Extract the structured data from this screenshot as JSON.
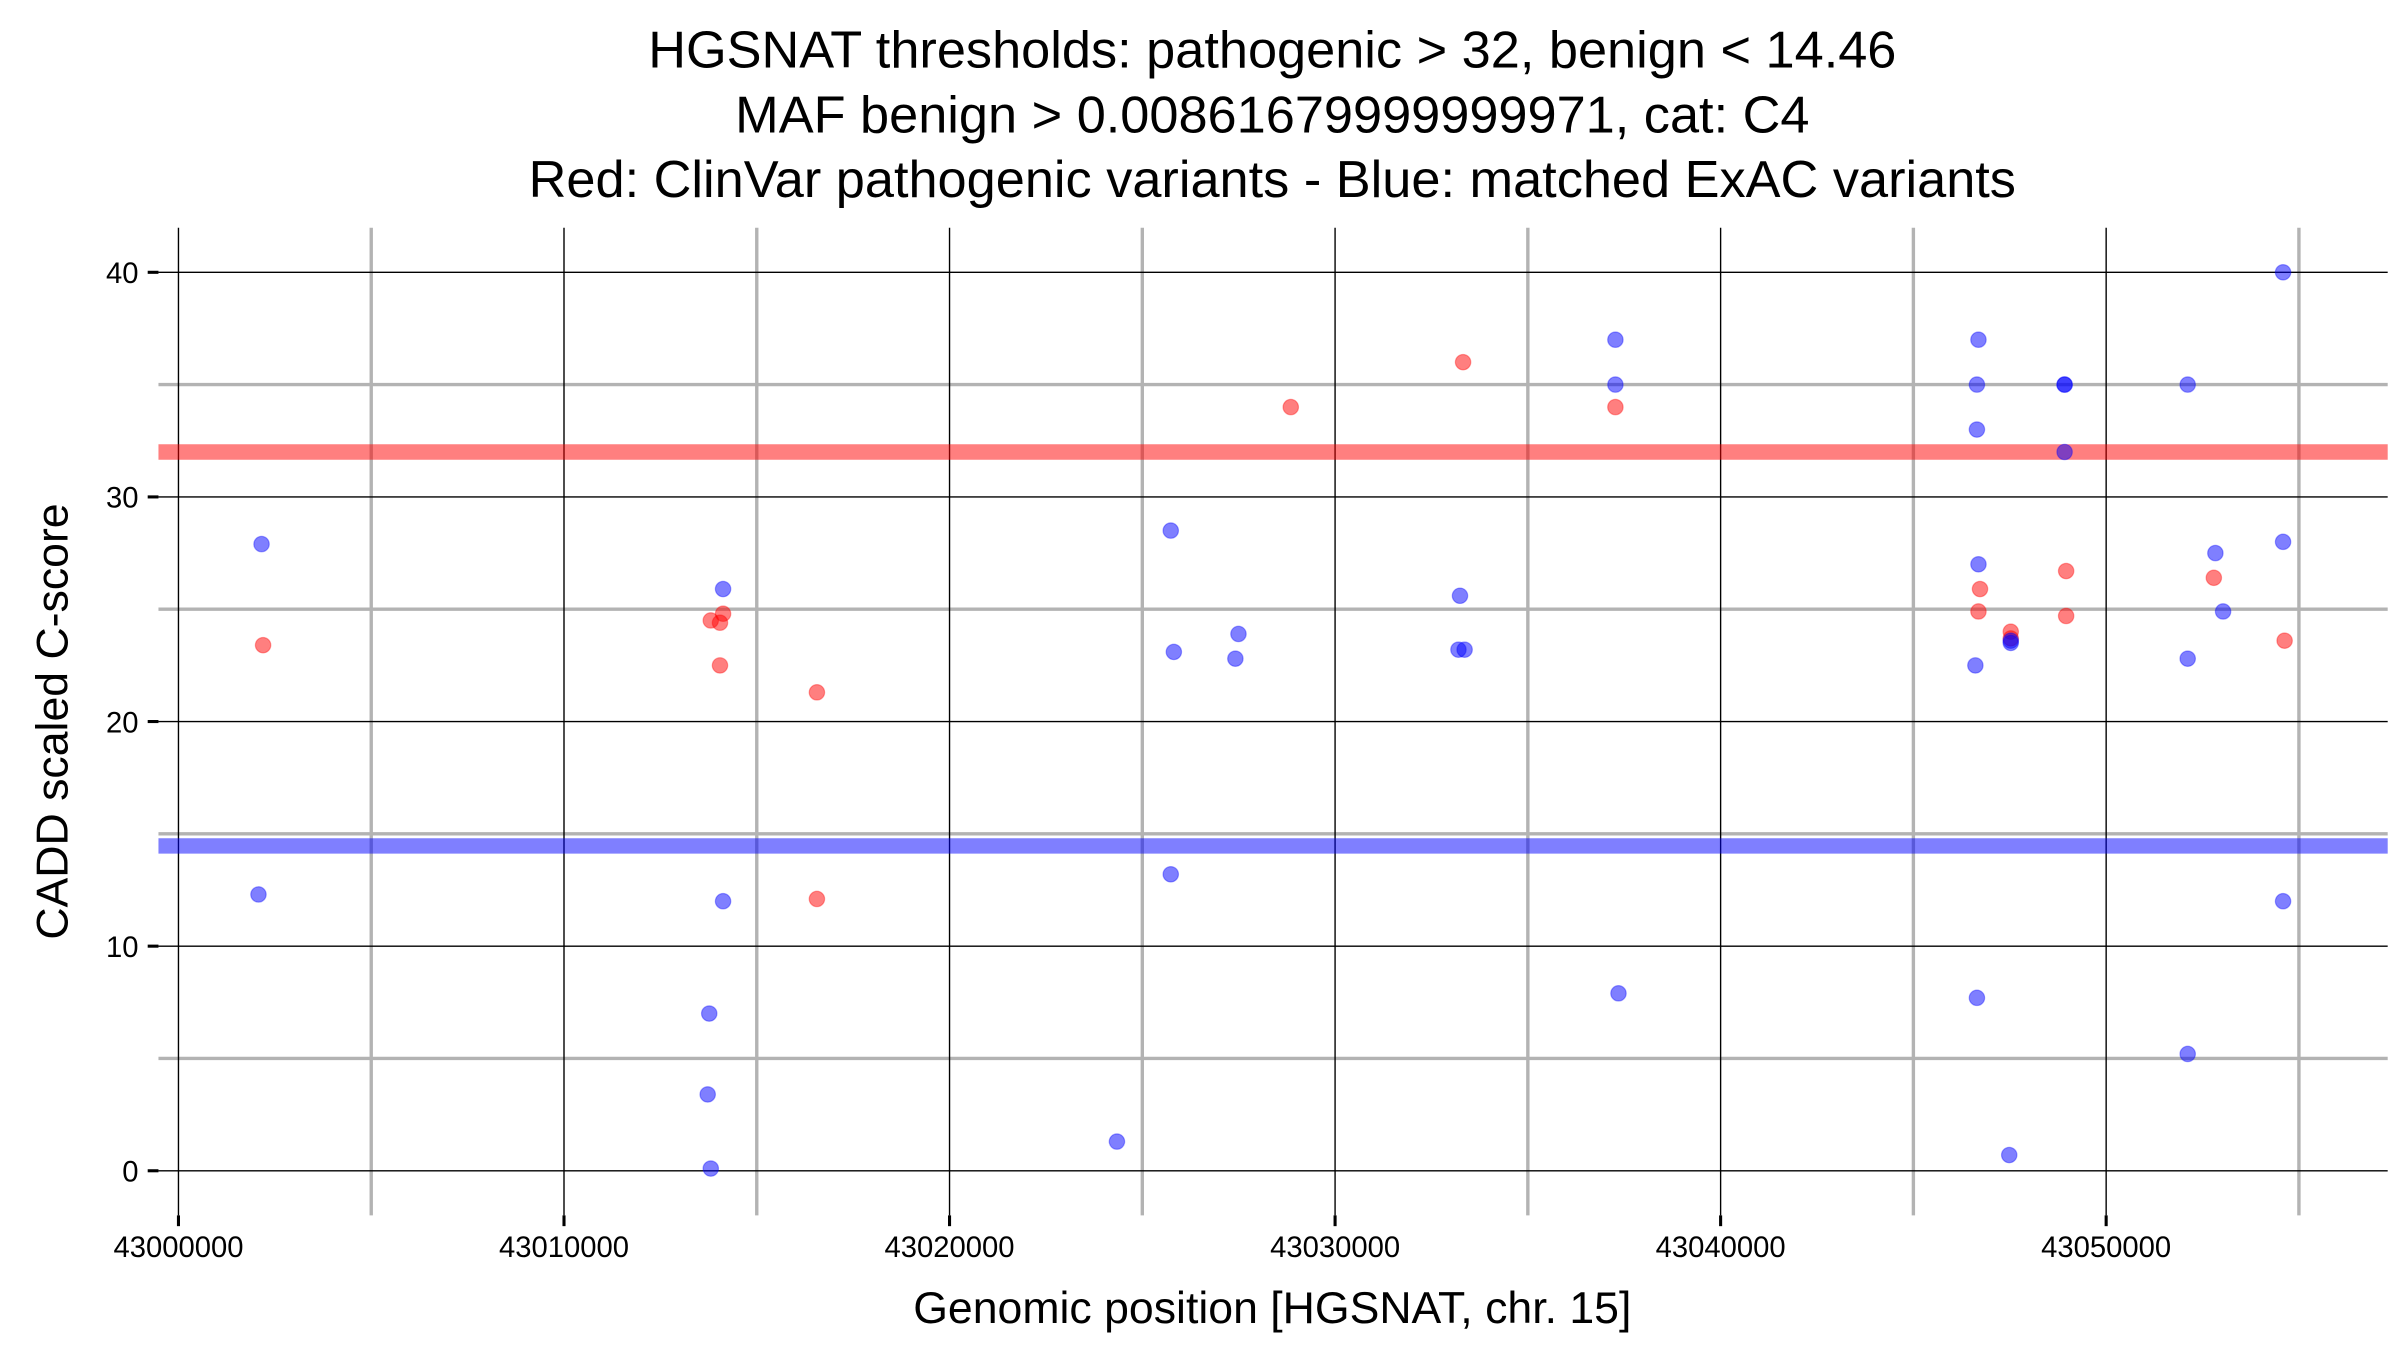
{
  "chart_data": {
    "type": "scatter",
    "title_lines": [
      "HGSNAT thresholds: pathogenic > 32, benign < 14.46",
      "MAF benign > 0.00861679999999971, cat: C4",
      "Red: ClinVar pathogenic variants - Blue: matched ExAC variants"
    ],
    "xlabel": "Genomic position [HGSNAT, chr. 15]",
    "ylabel": "CADD scaled C-score",
    "xlim": [
      42999500,
      43057200
    ],
    "ylim": [
      -1.9,
      41.9
    ],
    "xticks": [
      43000000,
      43010000,
      43020000,
      43030000,
      43040000,
      43050000
    ],
    "xtick_labels": [
      "43000000",
      "43010000",
      "43020000",
      "43030000",
      "43040000",
      "43050000"
    ],
    "xminor": [
      43005000,
      43015000,
      43025000,
      43035000,
      43045000,
      43055000
    ],
    "yticks": [
      0,
      10,
      20,
      30,
      40
    ],
    "ytick_labels": [
      "0",
      "10",
      "20",
      "30",
      "40"
    ],
    "yminor": [
      5,
      15,
      25,
      35
    ],
    "grid": true,
    "thresholds": [
      {
        "name": "pathogenic",
        "value": 32,
        "color": "#ff0000"
      },
      {
        "name": "benign",
        "value": 14.46,
        "color": "#0000ff"
      }
    ],
    "series": [
      {
        "name": "ClinVar pathogenic variants",
        "color": "#ff0000",
        "points": [
          [
            43002195,
            23.4
          ],
          [
            43013807,
            24.5
          ],
          [
            43014126,
            24.8
          ],
          [
            43014046,
            24.4
          ],
          [
            43014046,
            22.5
          ],
          [
            43016560,
            21.3
          ],
          [
            43016560,
            12.1
          ],
          [
            43028851,
            34.0
          ],
          [
            43033320,
            36.0
          ],
          [
            43037271,
            34.0
          ],
          [
            43046728,
            25.9
          ],
          [
            43046688,
            24.9
          ],
          [
            43047526,
            24.0
          ],
          [
            43047526,
            23.7
          ],
          [
            43048962,
            26.7
          ],
          [
            43048962,
            24.7
          ],
          [
            43052793,
            26.4
          ],
          [
            43054629,
            23.6
          ]
        ]
      },
      {
        "name": "matched ExAC variants",
        "color": "#0000ff",
        "points": [
          [
            43002155,
            27.9
          ],
          [
            43002075,
            12.3
          ],
          [
            43014126,
            25.9
          ],
          [
            43014126,
            12.0
          ],
          [
            43013767,
            7.0
          ],
          [
            43013727,
            3.4
          ],
          [
            43013807,
            0.1
          ],
          [
            43024342,
            1.3
          ],
          [
            43025738,
            28.5
          ],
          [
            43025818,
            23.1
          ],
          [
            43025738,
            13.2
          ],
          [
            43027494,
            23.9
          ],
          [
            43027414,
            22.8
          ],
          [
            43033240,
            25.6
          ],
          [
            43033200,
            23.2
          ],
          [
            43033360,
            23.2
          ],
          [
            43037271,
            37.0
          ],
          [
            43037271,
            35.0
          ],
          [
            43037351,
            7.9
          ],
          [
            43046688,
            37.0
          ],
          [
            43046648,
            35.0
          ],
          [
            43046648,
            33.0
          ],
          [
            43046688,
            27.0
          ],
          [
            43046608,
            22.5
          ],
          [
            43046648,
            7.7
          ],
          [
            43047526,
            23.5
          ],
          [
            43047526,
            23.6
          ],
          [
            43047486,
            0.7
          ],
          [
            43048922,
            35.0
          ],
          [
            43048922,
            35.0
          ],
          [
            43048922,
            32.0
          ],
          [
            43052115,
            35.0
          ],
          [
            43052115,
            22.8
          ],
          [
            43052115,
            5.2
          ],
          [
            43052833,
            27.5
          ],
          [
            43053033,
            24.9
          ],
          [
            43054589,
            40.0
          ],
          [
            43054589,
            28.0
          ],
          [
            43054589,
            12.0
          ]
        ]
      }
    ]
  }
}
